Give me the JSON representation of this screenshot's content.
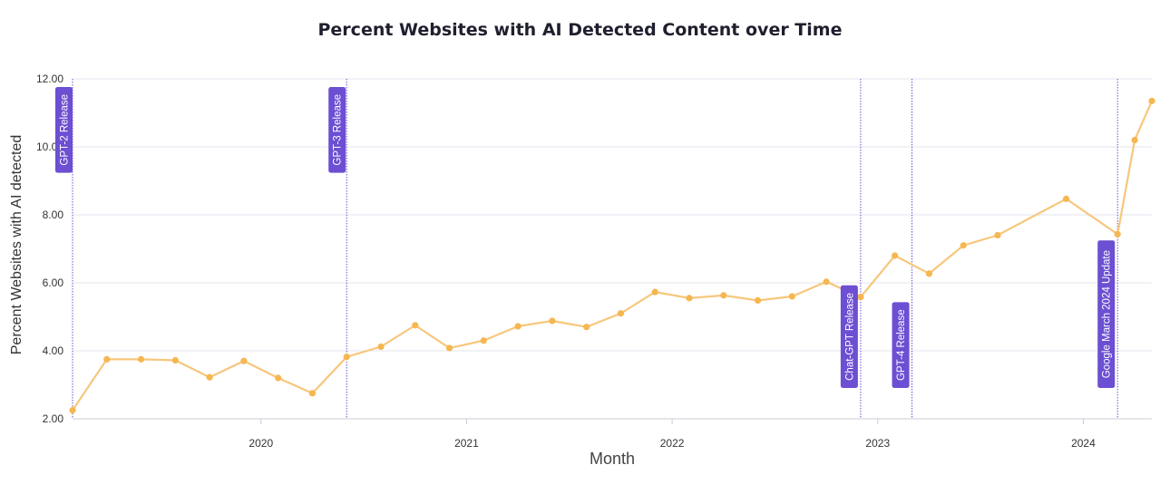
{
  "chart_data": {
    "type": "line",
    "title": "Percent Websites with AI Detected Content over Time",
    "xlabel": "Month",
    "ylabel": "Percent Websites with AI detected",
    "ylim": [
      2,
      12
    ],
    "y_ticks": [
      "2.00",
      "4.00",
      "6.00",
      "8.00",
      "10.00",
      "12.00"
    ],
    "x_ticks": [
      "2020",
      "2021",
      "2022",
      "2023",
      "2024"
    ],
    "grid": true,
    "colors": {
      "line": "#f7c77c",
      "point": "#f6b650",
      "annotation": "#6c4fd2",
      "grid": "#e3e5ec"
    },
    "series": [
      {
        "x": [
          "2019-02",
          "2019-04",
          "2019-06",
          "2019-08",
          "2019-10",
          "2019-12",
          "2020-02",
          "2020-04",
          "2020-06",
          "2020-08",
          "2020-10",
          "2020-12",
          "2021-02",
          "2021-04",
          "2021-06",
          "2021-08",
          "2021-10",
          "2021-12",
          "2022-02",
          "2022-04",
          "2022-06",
          "2022-08",
          "2022-10",
          "2022-12",
          "2023-02",
          "2023-04",
          "2023-06",
          "2023-08",
          "2023-12",
          "2024-03",
          "2024-04",
          "2024-05"
        ],
        "values": [
          2.25,
          3.75,
          3.75,
          3.72,
          3.22,
          3.7,
          3.2,
          2.75,
          3.82,
          4.12,
          4.75,
          4.08,
          4.3,
          4.72,
          4.88,
          4.7,
          5.1,
          5.73,
          5.55,
          5.63,
          5.48,
          5.6,
          6.03,
          5.58,
          6.8,
          6.27,
          7.1,
          7.4,
          8.47,
          7.43,
          10.2,
          11.35
        ]
      }
    ],
    "annotations": [
      {
        "x": "2019-02",
        "label": "GPT-2 Release"
      },
      {
        "x": "2020-06",
        "label": "GPT-3 Release"
      },
      {
        "x": "2022-12",
        "label": "Chat-GPT Release"
      },
      {
        "x": "2023-03",
        "label": "GPT-4 Release"
      },
      {
        "x": "2024-03",
        "label": "Google March 2024 Update"
      }
    ]
  }
}
